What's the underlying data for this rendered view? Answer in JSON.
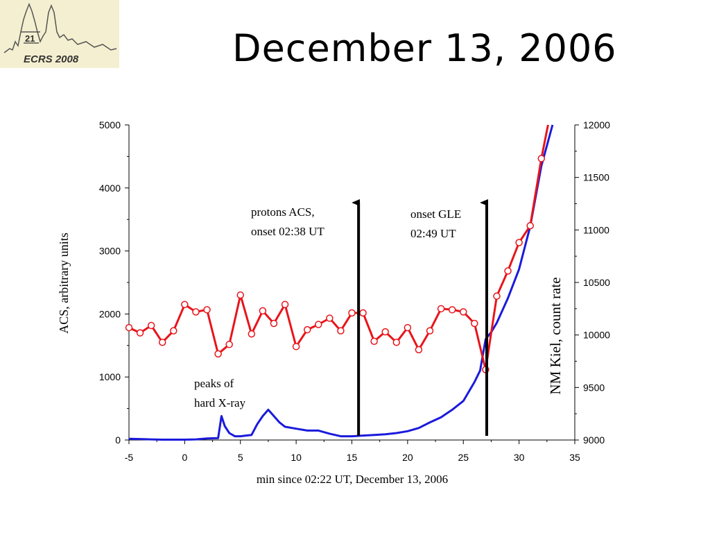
{
  "slide": {
    "title": "December 13, 2006",
    "logo_text": "ECRS 2008",
    "logo_number": "21"
  },
  "chart_data": {
    "type": "line",
    "xlabel": "min since 02:22 UT, December 13, 2006",
    "ylabel_left": "ACS, arbitrary units",
    "ylabel_right": "NM Kiel, count rate",
    "xlim": [
      -5,
      35
    ],
    "ylim_left": [
      0,
      5000
    ],
    "ylim_right": [
      9000,
      12000
    ],
    "x_ticks": [
      "-5",
      "0",
      "5",
      "10",
      "15",
      "20",
      "25",
      "30",
      "35"
    ],
    "y_ticks_left": [
      "0",
      "1000",
      "2000",
      "3000",
      "4000",
      "5000"
    ],
    "y_ticks_right": [
      "9000",
      "9500",
      "10000",
      "10500",
      "11000",
      "11500",
      "12000"
    ],
    "series": [
      {
        "axis": "right",
        "color": "#e8141a",
        "marker": "open-circle",
        "x": [
          -5,
          -4,
          -3,
          -2,
          -1,
          0,
          1,
          2,
          3,
          4,
          5,
          6,
          7,
          8,
          9,
          10,
          11,
          12,
          13,
          14,
          15,
          16,
          17,
          18,
          19,
          20,
          21,
          22,
          23,
          24,
          25,
          26,
          27,
          28,
          29,
          30,
          31,
          32,
          32.6
        ],
        "y": [
          10070,
          10020,
          10090,
          9930,
          10040,
          10290,
          10220,
          10240,
          9820,
          9910,
          10380,
          10010,
          10230,
          10110,
          10290,
          9890,
          10050,
          10100,
          10160,
          10040,
          10210,
          10210,
          9940,
          10030,
          9930,
          10070,
          9860,
          10040,
          10250,
          10240,
          10220,
          10110,
          9670,
          10370,
          10610,
          10880,
          11040,
          11680,
          12000
        ]
      },
      {
        "axis": "left",
        "color": "#1a1adc",
        "x": [
          -5,
          -4,
          -3,
          -2,
          -1,
          0,
          1,
          2,
          3,
          3.3,
          3.6,
          4,
          4.5,
          5,
          5.5,
          6,
          6.5,
          7,
          7.5,
          8,
          8.5,
          9,
          10,
          11,
          12,
          13,
          14,
          15,
          16,
          17,
          18,
          19,
          20,
          21,
          22,
          23,
          24,
          25,
          26,
          26.5,
          27,
          27.5,
          28,
          29,
          30,
          31,
          32,
          33
        ],
        "y": [
          20,
          15,
          10,
          5,
          5,
          5,
          10,
          25,
          30,
          380,
          220,
          110,
          60,
          60,
          70,
          80,
          250,
          380,
          480,
          380,
          280,
          210,
          180,
          150,
          150,
          100,
          60,
          60,
          70,
          80,
          90,
          110,
          140,
          190,
          280,
          360,
          480,
          620,
          920,
          1100,
          1600,
          1710,
          1860,
          2250,
          2710,
          3390,
          4350,
          5000
        ]
      }
    ],
    "annotations": [
      {
        "text_lines": [
          "protons ACS,",
          "onset 02:38 UT"
        ],
        "arrow_x": 15.6
      },
      {
        "text_lines": [
          "onset GLE",
          "02:49 UT"
        ],
        "arrow_x": 27.1
      },
      {
        "text_lines": [
          "peaks of",
          "hard X-ray"
        ]
      }
    ]
  }
}
